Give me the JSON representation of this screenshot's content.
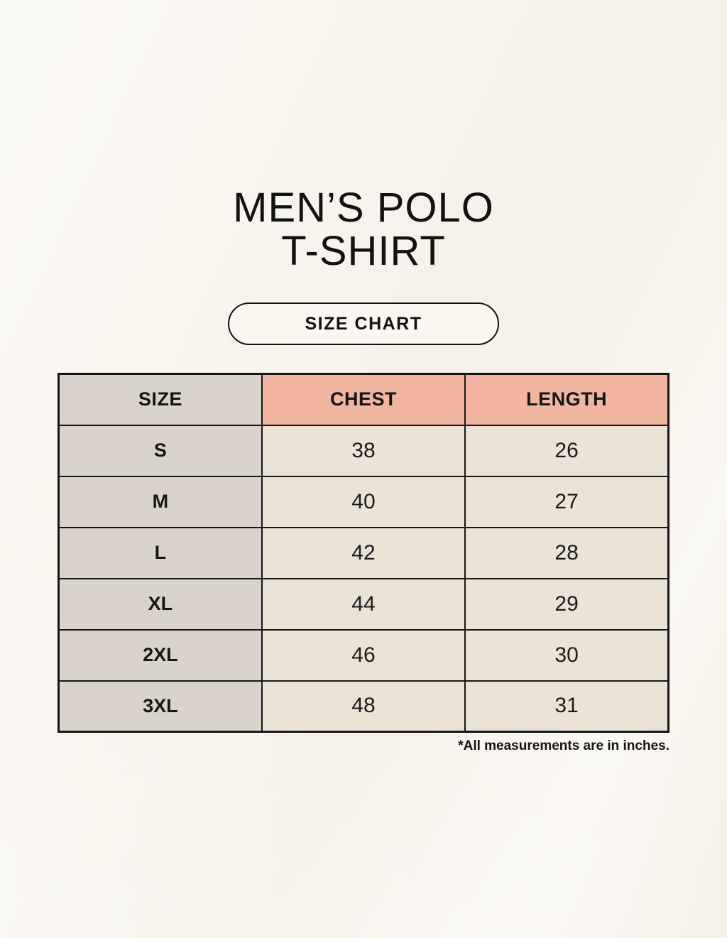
{
  "title": {
    "line1": "MEN’S POLO",
    "line2": "T-SHIRT"
  },
  "badge": {
    "label": "SIZE CHART"
  },
  "table": {
    "columns": [
      "SIZE",
      "CHEST",
      "LENGTH"
    ],
    "rows": [
      {
        "size": "S",
        "chest": "38",
        "length": "26"
      },
      {
        "size": "M",
        "chest": "40",
        "length": "27"
      },
      {
        "size": "L",
        "chest": "42",
        "length": "28"
      },
      {
        "size": "XL",
        "chest": "44",
        "length": "29"
      },
      {
        "size": "2XL",
        "chest": "46",
        "length": "30"
      },
      {
        "size": "3XL",
        "chest": "48",
        "length": "31"
      }
    ]
  },
  "footnote": "*All measurements are in inches.",
  "colors": {
    "background": "#f8f4ed",
    "size_column": "#dad3cc",
    "measure_header": "#f2b5a2",
    "value_cell": "#eae3d6",
    "border": "#161616",
    "text": "#121212"
  },
  "chart_data": {
    "type": "table",
    "title": "MEN’S POLO T-SHIRT",
    "subtitle": "SIZE CHART",
    "columns": [
      "SIZE",
      "CHEST",
      "LENGTH"
    ],
    "rows": [
      [
        "S",
        38,
        26
      ],
      [
        "M",
        40,
        27
      ],
      [
        "L",
        42,
        28
      ],
      [
        "XL",
        44,
        29
      ],
      [
        "2XL",
        46,
        30
      ],
      [
        "3XL",
        48,
        31
      ]
    ],
    "units": "inches",
    "note": "*All measurements are in inches."
  }
}
